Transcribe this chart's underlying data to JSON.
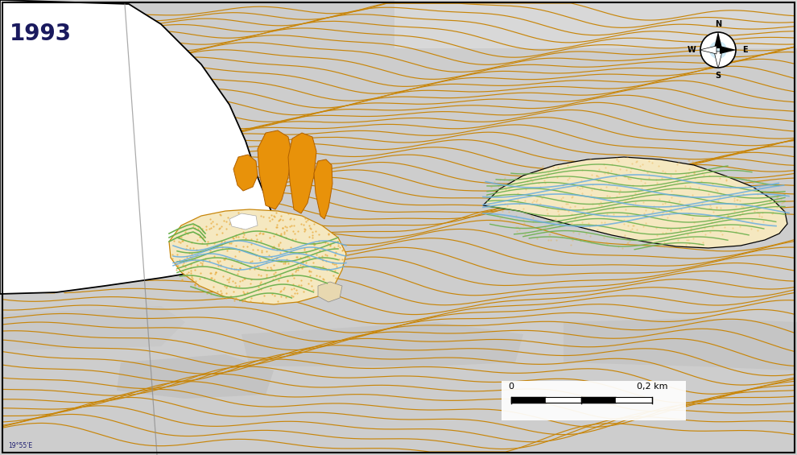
{
  "title_year": "1993",
  "bg_color": "#cdcdcd",
  "contour_color": "#c8860a",
  "contour_lw": 0.85,
  "veg_color": "#6ab04c",
  "channel_color": "#6aaee0",
  "sandur_fill": "#f5e8c0",
  "lobe_fill": "#e8920a",
  "glacier_edge": "#000000",
  "border_color": "#000000",
  "year_color": "#1a1a5e",
  "scale_label": "0,2 km",
  "attr_text": "19°55'E"
}
